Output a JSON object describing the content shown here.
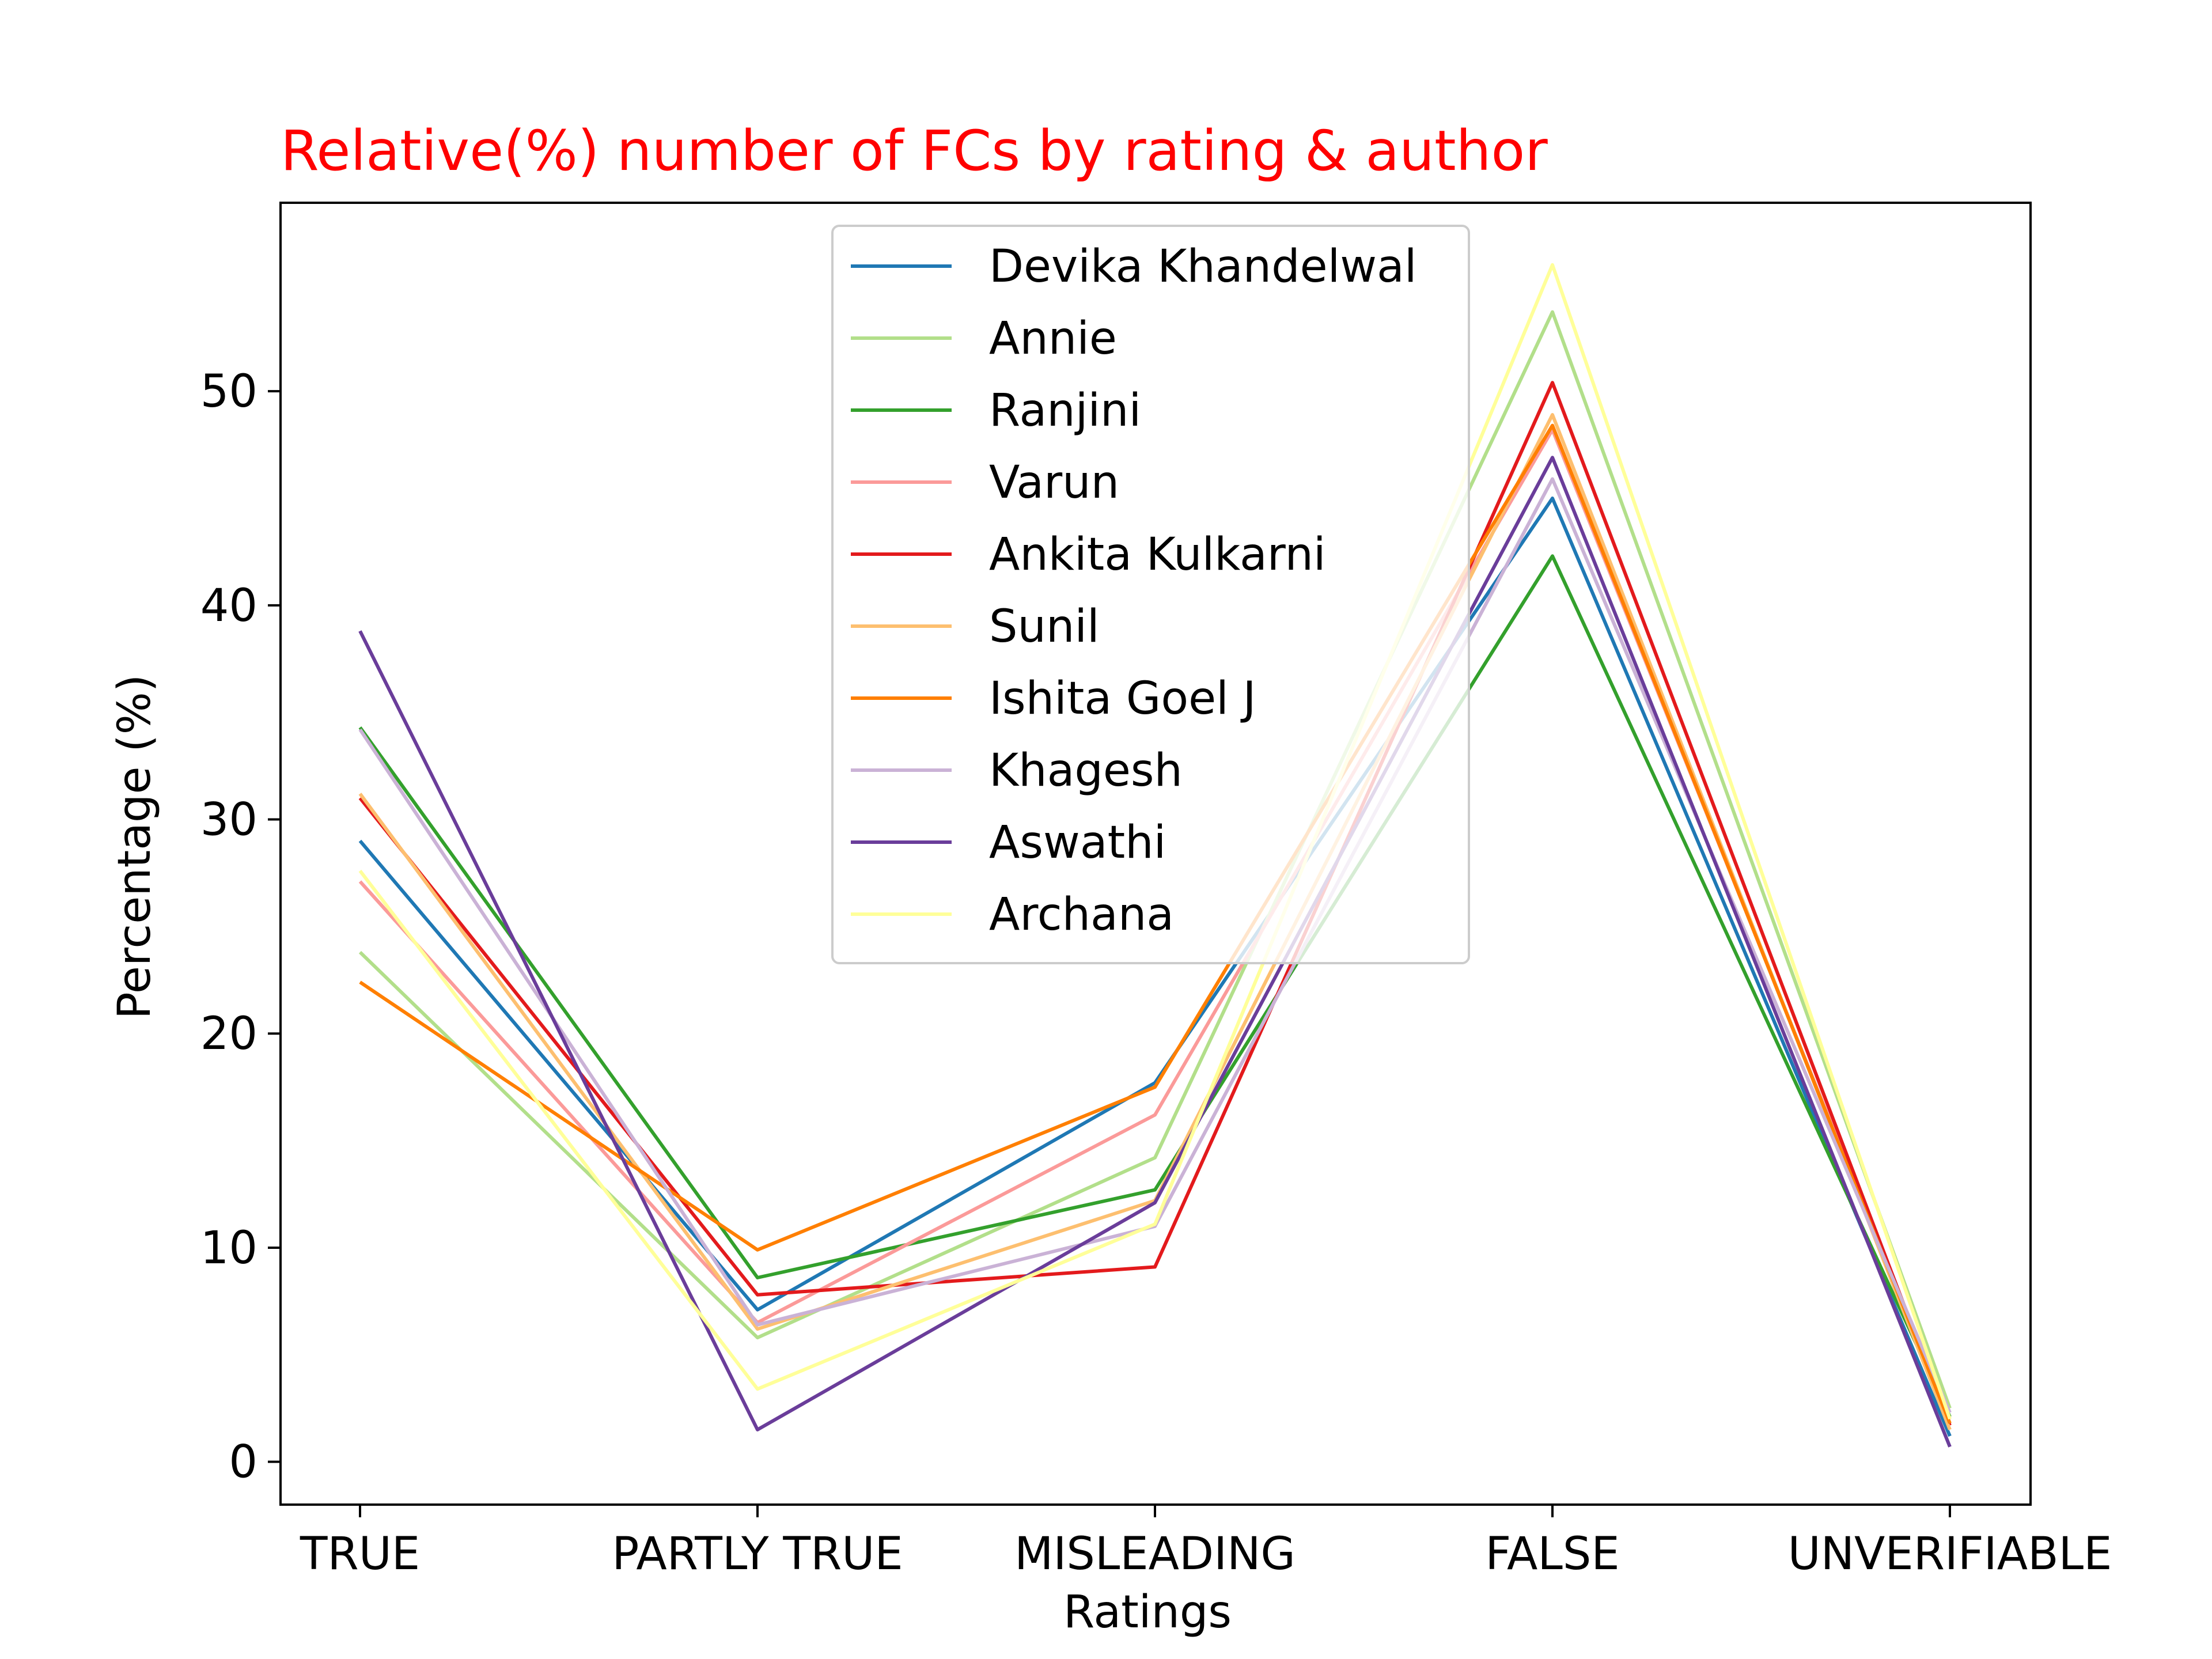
{
  "chart_data": {
    "type": "line",
    "title": "Relative(%) number of FCs by rating & author",
    "xlabel": "Ratings",
    "ylabel": "Percentage (%)",
    "categories": [
      "TRUE",
      "PARTLY TRUE",
      "MISLEADING",
      "FALSE",
      "UNVERIFIABLE"
    ],
    "yticks": [
      0,
      10,
      20,
      30,
      40,
      50
    ],
    "ylim": [
      -2,
      58.8
    ],
    "grid": false,
    "legend_placement": "upper center",
    "title_color": "#ff0000",
    "series": [
      {
        "name": "Devika Khandelwal",
        "color": "#1f78b4",
        "values": [
          29.0,
          7.1,
          17.7,
          45.0,
          1.2
        ]
      },
      {
        "name": "Annie",
        "color": "#b2df8a",
        "values": [
          23.8,
          5.8,
          14.2,
          53.7,
          2.5
        ]
      },
      {
        "name": "Ranjini",
        "color": "#33a02c",
        "values": [
          34.3,
          8.6,
          12.7,
          42.3,
          2.1
        ]
      },
      {
        "name": "Varun",
        "color": "#fb9a99",
        "values": [
          27.1,
          6.5,
          16.2,
          48.2,
          2.0
        ]
      },
      {
        "name": "Ankita Kulkarni",
        "color": "#e31a1c",
        "values": [
          31.0,
          7.8,
          9.1,
          50.4,
          1.7
        ]
      },
      {
        "name": "Sunil",
        "color": "#fdbf6f",
        "values": [
          31.2,
          6.2,
          12.2,
          48.9,
          1.5
        ]
      },
      {
        "name": "Ishita Goel J",
        "color": "#ff7f00",
        "values": [
          22.4,
          9.9,
          17.5,
          48.4,
          1.8
        ]
      },
      {
        "name": "Khagesh",
        "color": "#cab2d6",
        "values": [
          34.2,
          6.4,
          11.0,
          45.9,
          2.3
        ]
      },
      {
        "name": "Aswathi",
        "color": "#6a3d9a",
        "values": [
          38.8,
          1.5,
          12.1,
          46.9,
          0.7
        ]
      },
      {
        "name": "Archana",
        "color": "#ffff99",
        "values": [
          27.6,
          3.4,
          11.1,
          55.9,
          2.0
        ]
      }
    ]
  }
}
